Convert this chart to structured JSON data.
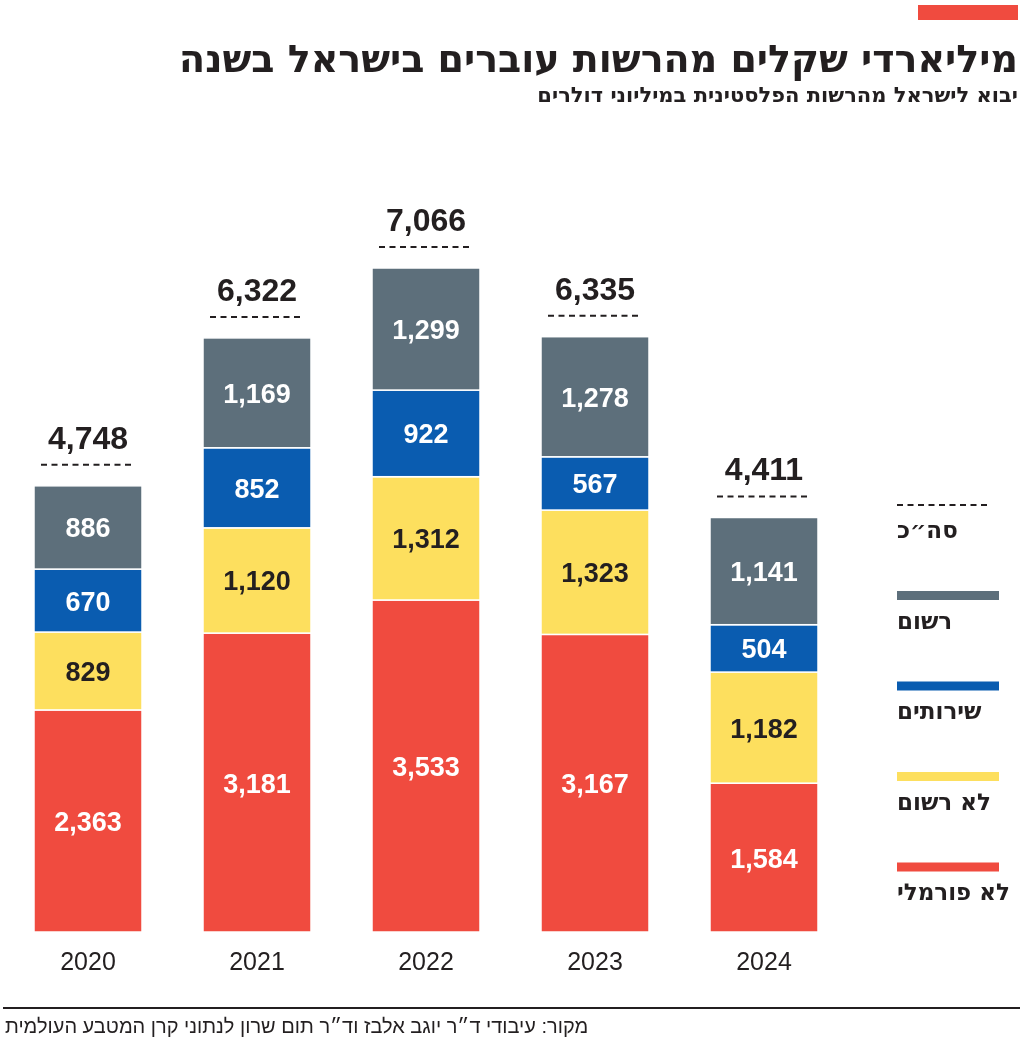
{
  "chart_data": {
    "type": "bar",
    "stacked": true,
    "title": "מיליארדי שקלים מהרשות עוברים בישראל בשנה",
    "subtitle": "יבוא לישראל מהרשות הפלסטינית במיליוני דולרים",
    "categories": [
      "2020",
      "2021",
      "2022",
      "2023",
      "2024"
    ],
    "series": [
      {
        "name": "לא פורמלי",
        "color": "#f04b3f",
        "values": [
          2363,
          3181,
          3533,
          3167,
          1584
        ],
        "value_labels": [
          "2,363",
          "3,181",
          "3,533",
          "3,167",
          "1,584"
        ]
      },
      {
        "name": "לא רשום",
        "color": "#fddf5e",
        "values": [
          829,
          1120,
          1312,
          1323,
          1182
        ],
        "value_labels": [
          "829",
          "1,120",
          "1,312",
          "1,323",
          "1,182"
        ]
      },
      {
        "name": "שירותים",
        "color": "#0a5cb0",
        "values": [
          670,
          852,
          922,
          567,
          504
        ],
        "value_labels": [
          "670",
          "852",
          "922",
          "567",
          "504"
        ]
      },
      {
        "name": "רשום",
        "color": "#5d6f7b",
        "values": [
          886,
          1169,
          1299,
          1278,
          1141
        ],
        "value_labels": [
          "886",
          "1,169",
          "1,299",
          "1,278",
          "1,141"
        ]
      }
    ],
    "totals": [
      "4,748",
      "6,322",
      "7,066",
      "6,335",
      "4,411"
    ],
    "legend": "right",
    "annotations": [
      "סה״כ",
      "מקור: עיבודי ד״ר יוגב אלבז וד״ר תום שרון לנתוני קרן המטבע העולמית"
    ]
  }
}
